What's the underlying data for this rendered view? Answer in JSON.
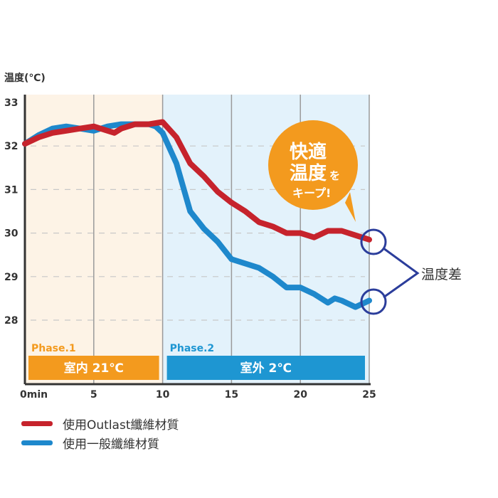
{
  "chart_data": {
    "type": "line",
    "ylabel": "温度(℃)",
    "xlim": [
      0,
      25
    ],
    "ylim": [
      27,
      33
    ],
    "x_ticks": [
      "0min",
      "5",
      "10",
      "15",
      "20",
      "25"
    ],
    "x_tick_values": [
      0,
      5,
      10,
      15,
      20,
      25
    ],
    "y_ticks": [
      33,
      32,
      31,
      30,
      29,
      28
    ],
    "phases": [
      {
        "label": "Phase.1",
        "band": "室内 21℃",
        "range": [
          0,
          10
        ],
        "color": "#f39a1e",
        "bg": "#fdf3e6"
      },
      {
        "label": "Phase.2",
        "band": "室外 2℃",
        "range": [
          10,
          25
        ],
        "color": "#1e96d2",
        "bg": "#e3f2fb"
      }
    ],
    "series": [
      {
        "name": "使用Outlast纖維材質",
        "color": "#c6232c",
        "x": [
          0,
          1,
          2,
          3,
          4,
          5,
          6,
          6.5,
          7,
          8,
          9,
          10,
          11,
          12,
          13,
          14,
          15,
          16,
          17,
          18,
          19,
          20,
          21,
          22,
          23,
          24,
          25
        ],
        "y": [
          32.05,
          32.2,
          32.3,
          32.35,
          32.4,
          32.45,
          32.35,
          32.3,
          32.4,
          32.5,
          32.5,
          32.55,
          32.2,
          31.6,
          31.3,
          30.95,
          30.7,
          30.5,
          30.25,
          30.15,
          30.0,
          30.0,
          29.9,
          30.05,
          30.05,
          29.95,
          29.85
        ]
      },
      {
        "name": "使用一般纖維材質",
        "color": "#1e88cc",
        "x": [
          0,
          1,
          2,
          3,
          4,
          5,
          6,
          7,
          8,
          9,
          9.5,
          10,
          11,
          12,
          13,
          14,
          15,
          16,
          17,
          18,
          19,
          20,
          21,
          22,
          22.5,
          23,
          24,
          25
        ],
        "y": [
          32.05,
          32.25,
          32.4,
          32.45,
          32.4,
          32.35,
          32.45,
          32.5,
          32.5,
          32.5,
          32.45,
          32.3,
          31.6,
          30.5,
          30.1,
          29.8,
          29.4,
          29.3,
          29.2,
          29.0,
          28.75,
          28.75,
          28.6,
          28.4,
          28.5,
          28.45,
          28.3,
          28.45
        ]
      }
    ],
    "annotations": {
      "bubble": [
        "快適",
        "温度",
        "を",
        "キープ!"
      ],
      "difference_label": "温度差"
    }
  }
}
